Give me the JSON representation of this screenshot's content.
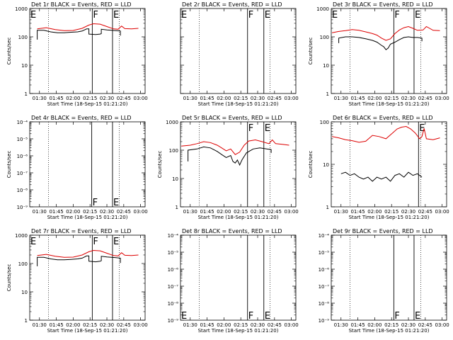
{
  "colors": {
    "events": "#000000",
    "lld": "#dd0000",
    "background": "#ffffff"
  },
  "chart_data": [
    {
      "type": "line",
      "title": "Det 1r BLACK = Events, RED = LLD",
      "xlabel": "Start Time (18-Sep-15 01:21:20)",
      "ylabel": "Counts/sec",
      "yscale": "log",
      "ylim": [
        1,
        1000
      ],
      "yticks": [
        "1",
        "10",
        "100",
        "1000"
      ],
      "xticks": [
        "01:30",
        "01:45",
        "02:00",
        "02:15",
        "02:30",
        "02:45",
        "03:00"
      ],
      "xlim": [
        "01:21:20",
        "03:04:00"
      ],
      "markers": [
        {
          "label": "E",
          "time": "01:21:20",
          "style": "none"
        },
        {
          "label": "F",
          "time": "02:17:00",
          "style": "solid"
        },
        {
          "label": "E",
          "time": "02:35:00",
          "style": "solid"
        }
      ],
      "dotted_lines": [
        "01:38:00",
        "02:41:00"
      ],
      "series": [
        {
          "key": "lld",
          "color": "#dd0000",
          "x": [
            "01:28",
            "01:36",
            "01:44",
            "01:52",
            "02:00",
            "02:08",
            "02:14",
            "02:18",
            "02:24",
            "02:30",
            "02:36",
            "02:40",
            "02:43",
            "02:46",
            "02:52",
            "02:58"
          ],
          "y": [
            190,
            210,
            180,
            165,
            168,
            200,
            260,
            290,
            280,
            230,
            190,
            185,
            240,
            195,
            190,
            200
          ]
        },
        {
          "key": "events",
          "color": "#000000",
          "x": [
            "01:28",
            "01:28",
            "01:34",
            "01:40",
            "01:46",
            "01:52",
            "01:58",
            "02:04",
            "02:08",
            "02:12",
            "02:14",
            "02:14",
            "02:20",
            "02:24",
            "02:25",
            "02:25",
            "02:30",
            "02:34",
            "02:38",
            "02:42",
            "02:42"
          ],
          "y": [
            80,
            170,
            170,
            150,
            140,
            140,
            145,
            150,
            160,
            190,
            190,
            125,
            120,
            125,
            130,
            185,
            175,
            170,
            165,
            160,
            110
          ]
        }
      ]
    },
    {
      "type": "line",
      "title": "Det 2r BLACK = Events, RED = LLD",
      "xlabel": "Start Time (18-Sep-15 01:21:20)",
      "ylabel": "",
      "yscale": "log",
      "ylim": [
        1,
        1000
      ],
      "yticks": [],
      "xticks": [
        "01:30",
        "01:45",
        "02:00",
        "02:15",
        "02:30",
        "02:45",
        "03:00"
      ],
      "xlim": [
        "01:21:20",
        "03:04:00"
      ],
      "markers": [
        {
          "label": "E",
          "time": "01:21:20",
          "style": "none"
        },
        {
          "label": "F",
          "time": "02:21:00",
          "style": "solid"
        },
        {
          "label": "E",
          "time": "02:35:30",
          "style": "solid"
        }
      ],
      "dotted_lines": [
        "01:38:00",
        "02:41:00"
      ],
      "series": []
    },
    {
      "type": "line",
      "title": "Det 3r BLACK = Events, RED = LLD",
      "xlabel": "Start Time (18-Sep-15 01:21:20)",
      "ylabel": "Counts/sec",
      "yscale": "log",
      "ylim": [
        1,
        1000
      ],
      "yticks": [
        "1",
        "10",
        "100",
        "1000"
      ],
      "xticks": [
        "01:30",
        "01:45",
        "02:00",
        "02:15",
        "02:30",
        "02:45",
        "03:00"
      ],
      "xlim": [
        "01:21:20",
        "03:04:00"
      ],
      "markers": [
        {
          "label": "E",
          "time": "01:21:20",
          "style": "none"
        },
        {
          "label": "F",
          "time": "02:17:00",
          "style": "solid"
        },
        {
          "label": "E",
          "time": "02:35:00",
          "style": "solid"
        }
      ],
      "dotted_lines": [
        "01:38:00",
        "02:41:00"
      ],
      "series": [
        {
          "key": "lld",
          "color": "#dd0000",
          "x": [
            "01:22",
            "01:28",
            "01:34",
            "01:40",
            "01:46",
            "01:52",
            "01:58",
            "02:02",
            "02:06",
            "02:10",
            "02:14",
            "02:18",
            "02:22",
            "02:26",
            "02:30",
            "02:34",
            "02:38",
            "02:43",
            "02:46",
            "02:52",
            "02:58"
          ],
          "y": [
            140,
            155,
            165,
            180,
            170,
            150,
            130,
            115,
            90,
            75,
            85,
            130,
            175,
            210,
            230,
            200,
            170,
            175,
            230,
            170,
            165
          ]
        },
        {
          "key": "events",
          "color": "#000000",
          "x": [
            "01:28",
            "01:28",
            "01:34",
            "01:40",
            "01:46",
            "01:52",
            "01:58",
            "02:02",
            "02:06",
            "02:08",
            "02:10",
            "02:12",
            "02:14",
            "02:18",
            "02:22",
            "02:26",
            "02:30",
            "02:34",
            "02:38",
            "02:42",
            "02:42"
          ],
          "y": [
            60,
            90,
            100,
            100,
            95,
            85,
            75,
            65,
            50,
            45,
            35,
            40,
            55,
            65,
            80,
            95,
            100,
            95,
            95,
            90,
            70
          ]
        }
      ]
    },
    {
      "type": "line",
      "title": "Det 4r BLACK = Events, RED = LLD",
      "xlabel": "Start Time (18-Sep-15 01:21:20)",
      "ylabel": "Counts/sec",
      "yscale": "log",
      "ylim": [
        1e-09,
        0.0001
      ],
      "yticks": [
        "10⁻⁹",
        "10⁻⁸",
        "10⁻⁷",
        "10⁻⁶",
        "10⁻⁵",
        "10⁻⁴"
      ],
      "xticks": [
        "01:30",
        "01:45",
        "02:00",
        "02:15",
        "02:30",
        "02:45",
        "03:00"
      ],
      "xlim": [
        "01:21:20",
        "03:04:00"
      ],
      "markers": [
        {
          "label": "F",
          "time": "02:16:30",
          "style": "solid",
          "bottom": true
        },
        {
          "label": "E",
          "time": "02:35:00",
          "style": "solid",
          "bottom": true
        }
      ],
      "dotted_lines": [
        "01:38:00",
        "02:41:00"
      ],
      "series": []
    },
    {
      "type": "line",
      "title": "Det 5r BLACK = Events, RED = LLD",
      "xlabel": "Start Time (18-Sep-15 01:21:20)",
      "ylabel": "Counts/sec",
      "yscale": "log",
      "ylim": [
        1,
        1000
      ],
      "yticks": [
        "1",
        "10",
        "100",
        "1000"
      ],
      "xticks": [
        "01:30",
        "01:45",
        "02:00",
        "02:15",
        "02:30",
        "02:45",
        "03:00"
      ],
      "xlim": [
        "01:21:20",
        "03:04:00"
      ],
      "markers": [
        {
          "label": "F",
          "time": "02:21:00",
          "style": "solid"
        },
        {
          "label": "E",
          "time": "02:35:30",
          "style": "solid"
        }
      ],
      "dotted_lines": [
        "01:38:00",
        "02:41:00"
      ],
      "series": [
        {
          "key": "lld",
          "color": "#dd0000",
          "x": [
            "01:22",
            "01:30",
            "01:36",
            "01:42",
            "01:48",
            "01:54",
            "01:58",
            "02:02",
            "02:06",
            "02:10",
            "02:14",
            "02:18",
            "02:22",
            "02:28",
            "02:34",
            "02:40",
            "02:43",
            "02:46",
            "02:52",
            "02:58"
          ],
          "y": [
            140,
            150,
            170,
            200,
            185,
            150,
            120,
            95,
            110,
            70,
            85,
            150,
            210,
            230,
            200,
            170,
            230,
            170,
            160,
            150
          ]
        },
        {
          "key": "events",
          "color": "#000000",
          "x": [
            "01:28",
            "01:28",
            "01:36",
            "01:42",
            "01:48",
            "01:54",
            "01:58",
            "02:02",
            "02:06",
            "02:08",
            "02:10",
            "02:12",
            "02:14",
            "02:16",
            "02:20",
            "02:26",
            "02:32",
            "02:38",
            "02:42",
            "02:42"
          ],
          "y": [
            40,
            100,
            110,
            130,
            120,
            90,
            70,
            55,
            65,
            40,
            35,
            45,
            30,
            45,
            80,
            110,
            120,
            110,
            105,
            80
          ]
        }
      ]
    },
    {
      "type": "line",
      "title": "Det 6r BLACK = Events, RED = LLD",
      "xlabel": "Start Time (18-Sep-15 01:21:20)",
      "ylabel": "Counts/sec",
      "yscale": "log",
      "ylim": [
        1,
        100
      ],
      "yticks": [
        "1",
        "10",
        "100"
      ],
      "xticks": [
        "01:30",
        "01:45",
        "02:00",
        "02:15",
        "02:30",
        "02:45",
        "03:00"
      ],
      "xlim": [
        "01:21:20",
        "03:04:00"
      ],
      "markers": [
        {
          "label": "E",
          "time": "02:39:00",
          "style": "solid"
        }
      ],
      "dotted_lines": [
        "01:38:00",
        "02:41:00"
      ],
      "series": [
        {
          "key": "lld",
          "color": "#dd0000",
          "x": [
            "01:22",
            "01:28",
            "01:34",
            "01:40",
            "01:46",
            "01:52",
            "01:58",
            "02:04",
            "02:10",
            "02:16",
            "02:20",
            "02:24",
            "02:28",
            "02:32",
            "02:36",
            "02:40",
            "02:42",
            "02:44",
            "02:46",
            "02:52",
            "02:58"
          ],
          "y": [
            45,
            42,
            38,
            36,
            33,
            35,
            48,
            45,
            40,
            55,
            68,
            75,
            78,
            68,
            55,
            40,
            45,
            70,
            40,
            38,
            42
          ]
        },
        {
          "key": "events",
          "color": "#000000",
          "x": [
            "01:30",
            "01:34",
            "01:38",
            "01:42",
            "01:46",
            "01:50",
            "01:54",
            "01:58",
            "02:02",
            "02:06",
            "02:10",
            "02:14",
            "02:18",
            "02:22",
            "02:26",
            "02:30",
            "02:34",
            "02:38",
            "02:42"
          ],
          "y": [
            6,
            6.5,
            5.5,
            6,
            5,
            4.5,
            5,
            4,
            5,
            4.5,
            5,
            4,
            5.5,
            6,
            5,
            6.5,
            5.5,
            6,
            5
          ]
        }
      ]
    },
    {
      "type": "line",
      "title": "Det 7r BLACK = Events, RED = LLD",
      "xlabel": "Start Time (18-Sep-15 01:21:20)",
      "ylabel": "Counts/sec",
      "yscale": "log",
      "ylim": [
        1,
        1000
      ],
      "yticks": [
        "1",
        "10",
        "100",
        "1000"
      ],
      "xticks": [
        "01:30",
        "01:45",
        "02:00",
        "02:15",
        "02:30",
        "02:45",
        "03:00"
      ],
      "xlim": [
        "01:21:20",
        "03:04:00"
      ],
      "markers": [
        {
          "label": "E",
          "time": "01:21:20",
          "style": "none"
        },
        {
          "label": "F",
          "time": "02:17:00",
          "style": "solid"
        },
        {
          "label": "E",
          "time": "02:35:00",
          "style": "solid"
        }
      ],
      "dotted_lines": [
        "01:38:00",
        "02:41:00"
      ],
      "series": [
        {
          "key": "lld",
          "color": "#dd0000",
          "x": [
            "01:28",
            "01:36",
            "01:44",
            "01:52",
            "02:00",
            "02:08",
            "02:14",
            "02:18",
            "02:24",
            "02:30",
            "02:36",
            "02:40",
            "02:43",
            "02:46",
            "02:52",
            "02:58"
          ],
          "y": [
            190,
            210,
            180,
            165,
            168,
            200,
            260,
            290,
            280,
            230,
            190,
            185,
            240,
            195,
            190,
            200
          ]
        },
        {
          "key": "events",
          "color": "#000000",
          "x": [
            "01:28",
            "01:28",
            "01:34",
            "01:40",
            "01:46",
            "01:52",
            "01:58",
            "02:04",
            "02:08",
            "02:12",
            "02:14",
            "02:14",
            "02:20",
            "02:24",
            "02:25",
            "02:25",
            "02:30",
            "02:34",
            "02:38",
            "02:42",
            "02:42"
          ],
          "y": [
            80,
            165,
            165,
            145,
            135,
            135,
            140,
            145,
            155,
            185,
            185,
            120,
            115,
            120,
            125,
            180,
            170,
            165,
            160,
            155,
            105
          ]
        }
      ]
    },
    {
      "type": "line",
      "title": "Det 8r BLACK = Events, RED = LLD",
      "xlabel": "Start Time (18-Sep-15 01:21:20)",
      "ylabel": "",
      "yscale": "log",
      "ylim": [
        1e-09,
        0.0001
      ],
      "yticks": [
        "10⁻⁹",
        "10⁻⁸",
        "10⁻⁷",
        "10⁻⁶",
        "10⁻⁵",
        "10⁻⁴"
      ],
      "xticks": [
        "01:30",
        "01:45",
        "02:00",
        "02:15",
        "02:30",
        "02:45",
        "03:00"
      ],
      "xlim": [
        "01:21:20",
        "03:04:00"
      ],
      "markers": [
        {
          "label": "E",
          "time": "01:21:20",
          "style": "none",
          "bottom": true
        },
        {
          "label": "F",
          "time": "02:21:00",
          "style": "solid",
          "bottom": true
        },
        {
          "label": "E",
          "time": "02:35:30",
          "style": "solid",
          "bottom": true
        }
      ],
      "dotted_lines": [
        "01:38:00",
        "02:41:00"
      ],
      "series": []
    },
    {
      "type": "line",
      "title": "Det 9r BLACK = Events, RED = LLD",
      "xlabel": "Start Time (18-Sep-15 01:21:20)",
      "ylabel": "",
      "yscale": "log",
      "ylim": [
        1e-09,
        0.0001
      ],
      "yticks": [
        "10⁻⁹",
        "10⁻⁸",
        "10⁻⁷",
        "10⁻⁶",
        "10⁻⁵",
        "10⁻⁴"
      ],
      "xticks": [
        "01:30",
        "01:45",
        "02:00",
        "02:15",
        "02:30",
        "02:45",
        "03:00"
      ],
      "xlim": [
        "01:21:20",
        "03:04:00"
      ],
      "markers": [
        {
          "label": "F",
          "time": "02:17:00",
          "style": "solid",
          "bottom": true
        },
        {
          "label": "E",
          "time": "02:35:00",
          "style": "solid",
          "bottom": true
        }
      ],
      "dotted_lines": [
        "01:38:00",
        "02:41:00"
      ],
      "series": []
    }
  ]
}
